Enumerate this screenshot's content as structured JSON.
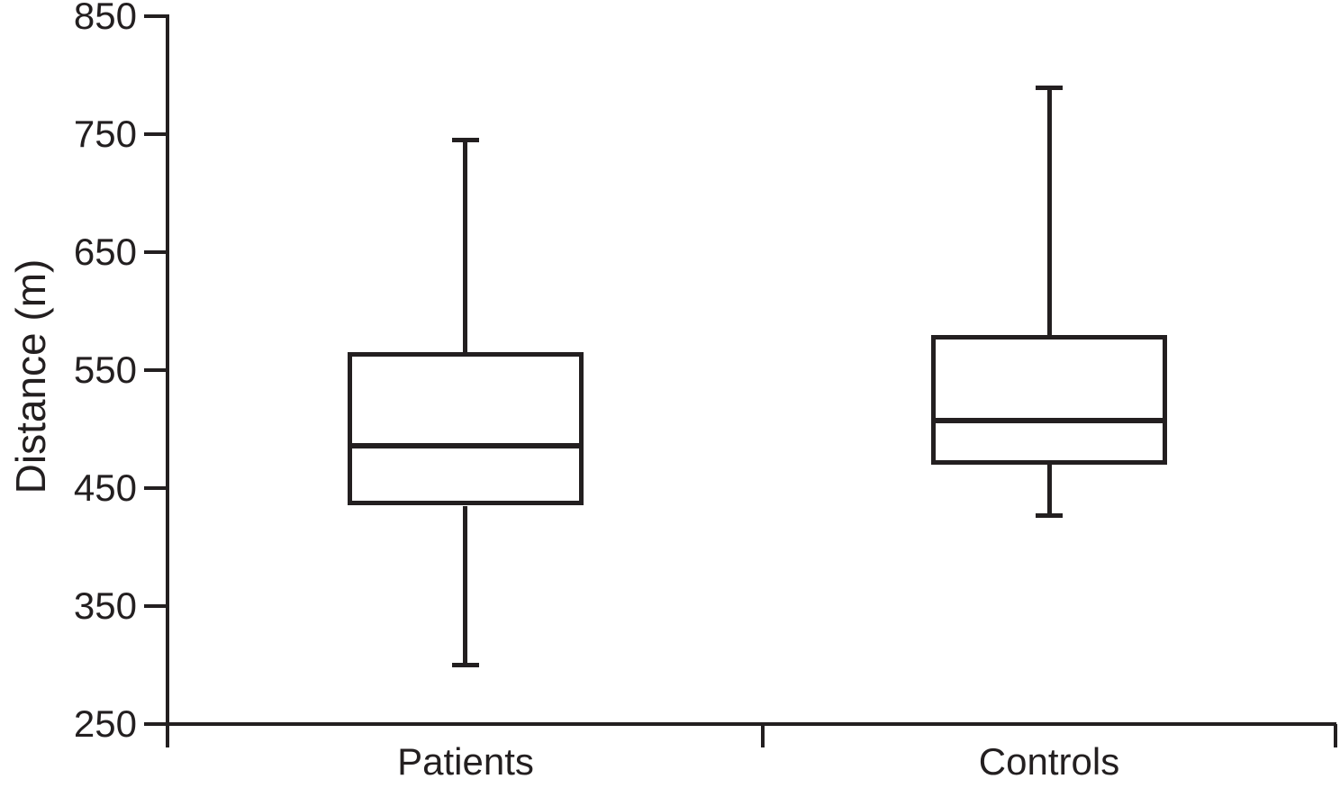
{
  "figure": {
    "background": "#ffffff",
    "line_color": "#231f20",
    "text_color": "#231f20"
  },
  "chart_data": {
    "type": "boxplot",
    "title": "",
    "xlabel": "",
    "ylabel": "Distance (m)",
    "ylim": [
      250,
      850
    ],
    "yticks": [
      850,
      750,
      650,
      550,
      450,
      350,
      250
    ],
    "grid": false,
    "legend": false,
    "categories": [
      "Patients",
      "Controls"
    ],
    "series": [
      {
        "name": "Patients",
        "whisker_low": 300,
        "q1": 435,
        "median": 486,
        "q3": 565,
        "whisker_high": 745
      },
      {
        "name": "Controls",
        "whisker_low": 427,
        "q1": 470,
        "median": 507,
        "q3": 580,
        "whisker_high": 789
      }
    ]
  }
}
